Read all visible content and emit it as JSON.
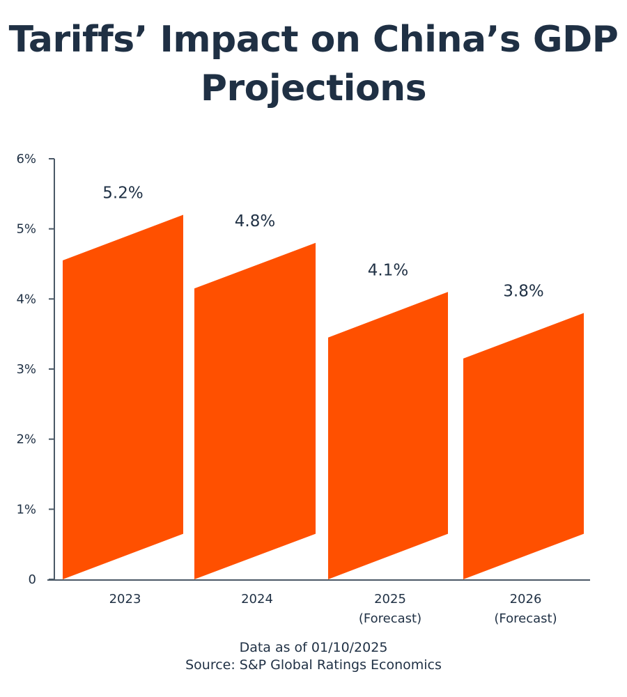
{
  "chart_data": {
    "type": "bar",
    "title": "Tariffs’ Impact on China’s GDP Projections",
    "categories": [
      [
        "2023"
      ],
      [
        "2024"
      ],
      [
        "2025",
        "(Forecast)"
      ],
      [
        "2026",
        "(Forecast)"
      ]
    ],
    "values": [
      5.2,
      4.8,
      4.1,
      3.8
    ],
    "data_labels": [
      "5.2%",
      "4.8%",
      "4.1%",
      "3.8%"
    ],
    "y_ticks": [
      0,
      1,
      2,
      3,
      4,
      5,
      6
    ],
    "y_tick_labels": [
      "0",
      "1%",
      "2%",
      "3%",
      "4%",
      "5%",
      "6%"
    ],
    "ylim": [
      0,
      6
    ],
    "xlabel": "",
    "ylabel": "",
    "grid": false,
    "bar_color": "#ff5000",
    "text_color": "#1f3044",
    "axis_color": "#4a5866"
  },
  "footer": {
    "line1": "Data as of 01/10/2025",
    "line2": "Source: S&P Global Ratings Economics"
  }
}
